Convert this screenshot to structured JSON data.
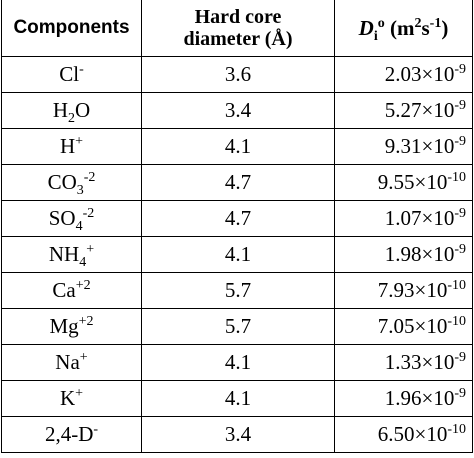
{
  "table": {
    "header": [
      [
        {
          "text": "Components"
        }
      ],
      [
        {
          "text": "Hard core diameter (Å)"
        }
      ],
      [
        {
          "italic": "D"
        },
        {
          "sub": "i"
        },
        {
          "sup": "o"
        },
        {
          "text": " (m"
        },
        {
          "sup": "2"
        },
        {
          "text": "s"
        },
        {
          "sup": "-1"
        },
        {
          "text": ")"
        }
      ]
    ],
    "rows": [
      [
        [
          {
            "text": "Cl"
          },
          {
            "sup": "-"
          }
        ],
        "3.6",
        [
          {
            "text": "2.03×10"
          },
          {
            "sup": "-9"
          }
        ]
      ],
      [
        [
          {
            "text": "H"
          },
          {
            "sub": "2"
          },
          {
            "text": "O"
          }
        ],
        "3.4",
        [
          {
            "text": "5.27×10"
          },
          {
            "sup": "-9"
          }
        ]
      ],
      [
        [
          {
            "text": "H"
          },
          {
            "sup": "+"
          }
        ],
        "4.1",
        [
          {
            "text": "9.31×10"
          },
          {
            "sup": "-9"
          }
        ]
      ],
      [
        [
          {
            "text": "CO"
          },
          {
            "sub": "3"
          },
          {
            "sup": "-2"
          }
        ],
        "4.7",
        [
          {
            "text": "9.55×10"
          },
          {
            "sup": "-10"
          }
        ]
      ],
      [
        [
          {
            "text": "SO"
          },
          {
            "sub": "4"
          },
          {
            "sup": "-2"
          }
        ],
        "4.7",
        [
          {
            "text": "1.07×10"
          },
          {
            "sup": "-9"
          }
        ]
      ],
      [
        [
          {
            "text": "NH"
          },
          {
            "sub": "4"
          },
          {
            "sup": "+"
          }
        ],
        "4.1",
        [
          {
            "text": "1.98×10"
          },
          {
            "sup": "-9"
          }
        ]
      ],
      [
        [
          {
            "text": "Ca"
          },
          {
            "sup": "+2"
          }
        ],
        "5.7",
        [
          {
            "text": "7.93×10"
          },
          {
            "sup": "-10"
          }
        ]
      ],
      [
        [
          {
            "text": "Mg"
          },
          {
            "sup": "+2"
          }
        ],
        "5.7",
        [
          {
            "text": "7.05×10"
          },
          {
            "sup": "-10"
          }
        ]
      ],
      [
        [
          {
            "text": "Na"
          },
          {
            "sup": "+"
          }
        ],
        "4.1",
        [
          {
            "text": "1.33×10"
          },
          {
            "sup": "-9"
          }
        ]
      ],
      [
        [
          {
            "text": "K"
          },
          {
            "sup": "+"
          }
        ],
        "4.1",
        [
          {
            "text": "1.96×10"
          },
          {
            "sup": "-9"
          }
        ]
      ],
      [
        [
          {
            "text": "2,4-D"
          },
          {
            "sup": "-"
          }
        ],
        "3.4",
        [
          {
            "text": "6.50×10"
          },
          {
            "sup": "-10"
          }
        ]
      ]
    ]
  }
}
